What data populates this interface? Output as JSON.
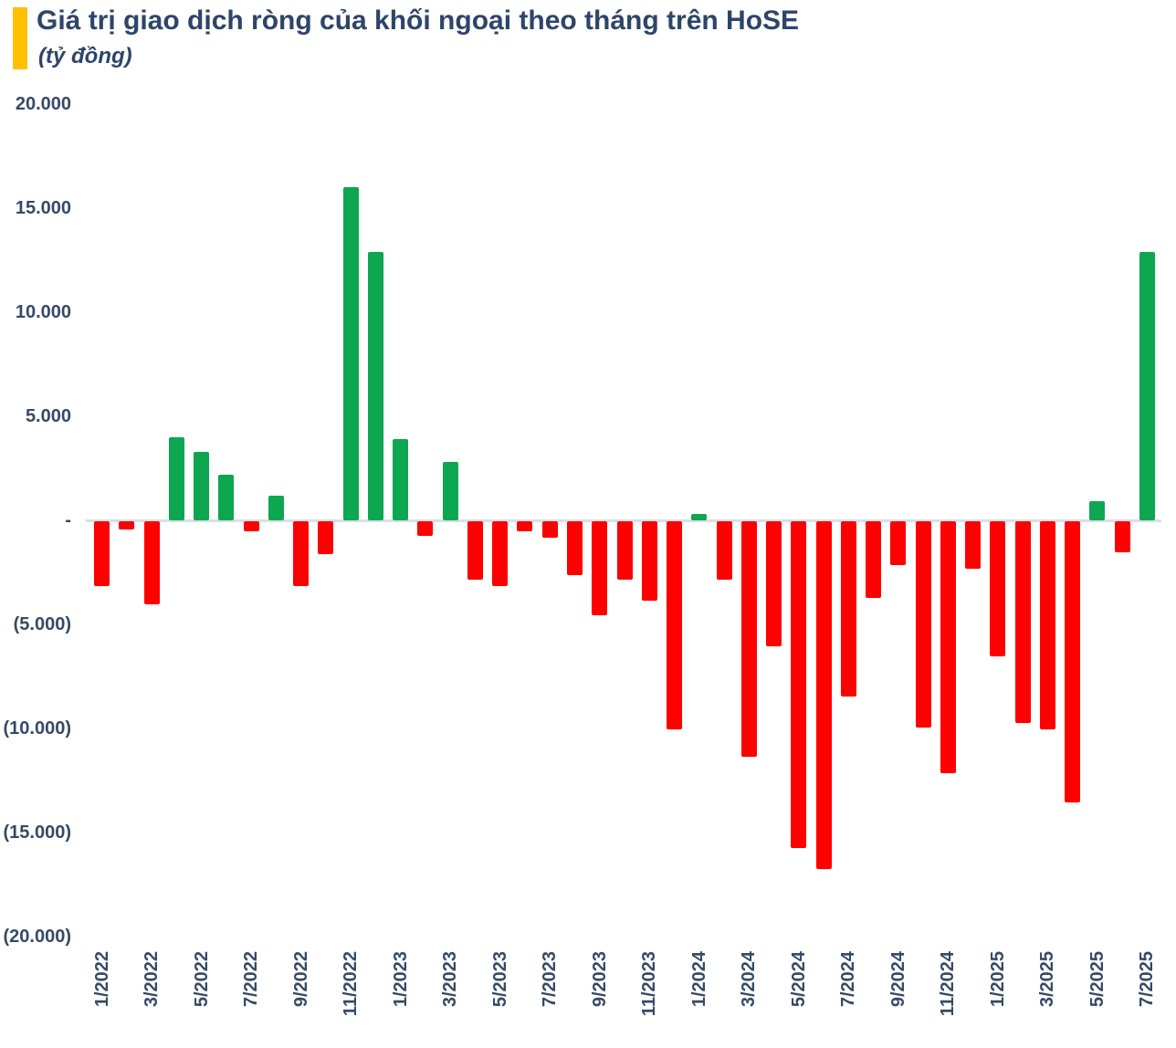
{
  "header": {
    "title": "Giá trị giao dịch ròng của khối ngoại theo tháng trên HoSE",
    "subtitle": "(tỷ đồng)",
    "accent_color": "#FFC000"
  },
  "chart_data": {
    "type": "bar",
    "title": "Giá trị giao dịch ròng của khối ngoại theo tháng trên HoSE",
    "unit_label": "(tỷ đồng)",
    "grid": "zero-line-only",
    "legend": "none",
    "ylim": [
      -20000,
      20000
    ],
    "categories": [
      "1/2022",
      "2/2022",
      "3/2022",
      "4/2022",
      "5/2022",
      "6/2022",
      "7/2022",
      "8/2022",
      "9/2022",
      "10/2022",
      "11/2022",
      "12/2022",
      "1/2023",
      "2/2023",
      "3/2023",
      "4/2023",
      "5/2023",
      "6/2023",
      "7/2023",
      "8/2023",
      "9/2023",
      "10/2023",
      "11/2023",
      "12/2023",
      "1/2024",
      "2/2024",
      "3/2024",
      "4/2024",
      "5/2024",
      "6/2024",
      "7/2024",
      "8/2024",
      "9/2024",
      "10/2024",
      "11/2024",
      "12/2024",
      "1/2025",
      "2/2025",
      "3/2025",
      "4/2025",
      "5/2025",
      "6/2025",
      "7/2025"
    ],
    "values": [
      -3100,
      -400,
      -4000,
      4000,
      3300,
      2200,
      -500,
      1200,
      -3100,
      -1600,
      16000,
      12900,
      3900,
      -700,
      2800,
      -2800,
      -3100,
      -500,
      -800,
      -2600,
      -4500,
      -2800,
      -3800,
      -10000,
      300,
      -2800,
      -11300,
      -6000,
      -15700,
      -16700,
      -8400,
      -3700,
      -2100,
      -9900,
      -12100,
      -2300,
      -6500,
      -9700,
      -10000,
      -13500,
      900,
      -1500,
      12900
    ],
    "xtick_labels": [
      "1/2022",
      "3/2022",
      "5/2022",
      "7/2022",
      "9/2022",
      "11/2022",
      "1/2023",
      "3/2023",
      "5/2023",
      "7/2023",
      "9/2023",
      "11/2023",
      "1/2024",
      "3/2024",
      "5/2024",
      "7/2024",
      "9/2024",
      "11/2024",
      "1/2025",
      "3/2025",
      "5/2025",
      "7/2025"
    ],
    "xtick_every": 2,
    "yticks": [
      {
        "label": "20.000",
        "value": 20000
      },
      {
        "label": "15.000",
        "value": 15000
      },
      {
        "label": "10.000",
        "value": 10000
      },
      {
        "label": "5.000",
        "value": 5000
      },
      {
        "label": "-",
        "value": 0
      },
      {
        "label": "(5.000)",
        "value": -5000
      },
      {
        "label": "(10.000)",
        "value": -10000
      },
      {
        "label": "(15.000)",
        "value": -15000
      },
      {
        "label": "(20.000)",
        "value": -20000
      }
    ],
    "positive_color": "#0CA750",
    "negative_color": "#FF0000",
    "zero_line_color": "#D9DFE8",
    "label_color": "#364A67"
  }
}
